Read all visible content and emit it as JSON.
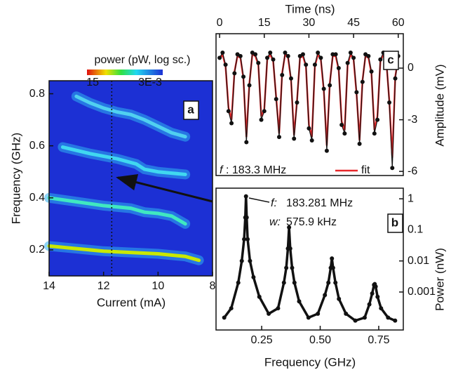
{
  "chart_data": [
    {
      "type": "contour",
      "panel_label": "a",
      "xlabel": "Current (mA)",
      "ylabel": "Frequency (GHz)",
      "xlim": [
        14,
        8
      ],
      "xticks": [
        14,
        12,
        10,
        8
      ],
      "ylim": [
        0.1,
        0.85
      ],
      "yticks": [
        0.2,
        0.4,
        0.6,
        0.8
      ],
      "color": "#1c30d4",
      "marker_x": 11.7,
      "colorbar": {
        "label": "power (pW, log sc.)",
        "clim": [
          30,
          0.003
        ],
        "ticks": [
          15,
          {
            "value": 0.003,
            "label": "3E-3"
          }
        ]
      },
      "series": [
        {
          "color": "#c8e800",
          "x": [
            14,
            13,
            12,
            11,
            10,
            9.5,
            9,
            8.5
          ],
          "values": [
            0.215,
            0.205,
            0.195,
            0.19,
            0.185,
            0.18,
            0.175,
            0.16
          ]
        },
        {
          "color": "#40e8c0",
          "x": [
            14,
            13,
            12,
            11,
            10.5,
            10,
            9.5,
            9
          ],
          "values": [
            0.4,
            0.385,
            0.37,
            0.36,
            0.345,
            0.34,
            0.33,
            0.3
          ]
        },
        {
          "color": "#40d8f0",
          "x": [
            13.5,
            12.5,
            11.5,
            10.8,
            10.5,
            10,
            9.5,
            9
          ],
          "values": [
            0.595,
            0.57,
            0.55,
            0.53,
            0.51,
            0.5,
            0.495,
            0.49
          ]
        },
        {
          "color": "#50d0f0",
          "x": [
            13,
            12.5,
            12,
            11.5,
            11,
            10.5,
            10,
            9.5,
            9
          ],
          "values": [
            0.79,
            0.765,
            0.745,
            0.73,
            0.72,
            0.7,
            0.675,
            0.65,
            0.635
          ]
        }
      ]
    },
    {
      "type": "line",
      "panel_label": "c",
      "xlabel": "Time (ns)",
      "ylabel": "Amplitude (mV)",
      "xlim": [
        -1.2,
        61.7
      ],
      "xticks": [
        0,
        15,
        30,
        45,
        60
      ],
      "ylim": [
        -6.24,
        2
      ],
      "yticks": [
        0,
        -3,
        -6
      ],
      "annotation": [
        "f",
        ": 183.3 MHz"
      ],
      "x": [
        0,
        1,
        2,
        3,
        4,
        5,
        6,
        7,
        8,
        9,
        10,
        11,
        12,
        13,
        14,
        15,
        16,
        17,
        18,
        19,
        20,
        21,
        22,
        23,
        24,
        25,
        26,
        27,
        28,
        29,
        30,
        31,
        32,
        33,
        34,
        35,
        36,
        37,
        38,
        39,
        40,
        41,
        42,
        43,
        44,
        45,
        46,
        47,
        48,
        49,
        50,
        51,
        52,
        53,
        54,
        55,
        56,
        57,
        58,
        59,
        60
      ],
      "series": [
        {
          "name": "fit",
          "color": "#e8282b",
          "values": [
            0.5,
            0.8,
            0.1,
            -2.3,
            -3.0,
            -0.2,
            0.7,
            0.6,
            -0.6,
            -4.0,
            -0.9,
            0.8,
            0.7,
            0.2,
            -2.8,
            -2.4,
            0.5,
            0.8,
            0.4,
            -1.7,
            -3.8,
            -0.3,
            0.8,
            0.6,
            -0.7,
            -3.9,
            -1.9,
            0.6,
            0.7,
            0.1,
            -3.3,
            -4.0,
            0.1,
            0.8,
            0.5,
            -1.3,
            -4.5,
            -0.9,
            0.7,
            0.7,
            -0.1,
            -3.1,
            -3.6,
            0.2,
            0.8,
            0.5,
            -1.5,
            -4.2,
            -0.7,
            0.7,
            0.6,
            -0.3,
            -3.6,
            -2.8,
            0.4,
            0.8,
            0.4,
            -1.9,
            -5.2,
            -0.5,
            0.6
          ]
        },
        {
          "color": "#111111",
          "values": [
            0.6,
            0.9,
            0.2,
            -2.5,
            -3.2,
            -0.3,
            0.8,
            0.7,
            -0.5,
            -4.3,
            -1.0,
            0.9,
            0.8,
            0.3,
            -3.0,
            -2.5,
            0.6,
            0.9,
            0.5,
            -1.8,
            -4.0,
            -0.4,
            0.9,
            0.7,
            -0.6,
            -4.1,
            -2.0,
            0.7,
            0.8,
            0.2,
            -3.5,
            -4.2,
            0.2,
            0.9,
            0.6,
            -1.2,
            -4.8,
            -1.0,
            0.8,
            0.8,
            0.0,
            -3.3,
            -3.8,
            0.3,
            0.9,
            0.6,
            -1.4,
            -4.4,
            -0.8,
            0.8,
            0.7,
            -0.2,
            -3.8,
            -3.0,
            0.5,
            0.9,
            0.5,
            -2.0,
            -5.8,
            -0.6,
            0.7
          ]
        }
      ]
    },
    {
      "type": "line",
      "panel_label": "b",
      "xlabel": "Frequency (GHz)",
      "ylabel": "Power (nW)",
      "log_y": true,
      "xlim": [
        0.055,
        0.855
      ],
      "xticks": [
        0.25,
        {
          "value": 0.5,
          "label": "0.50"
        },
        0.75
      ],
      "ylim": [
        6e-05,
        2.2
      ],
      "yticks": [
        0.001,
        0.01,
        0.1,
        1
      ],
      "annotation": [
        "f:",
        "183.281 MHz",
        "w:",
        "575.9 kHz"
      ],
      "x": [
        0.09,
        0.12,
        0.15,
        0.165,
        0.175,
        0.18,
        0.183,
        0.186,
        0.19,
        0.2,
        0.215,
        0.24,
        0.28,
        0.32,
        0.345,
        0.355,
        0.362,
        0.367,
        0.372,
        0.38,
        0.39,
        0.41,
        0.45,
        0.49,
        0.52,
        0.535,
        0.545,
        0.55,
        0.555,
        0.565,
        0.58,
        0.61,
        0.65,
        0.69,
        0.71,
        0.722,
        0.73,
        0.733,
        0.737,
        0.745,
        0.76,
        0.79,
        0.82
      ],
      "series": [
        {
          "color": "#111111",
          "values": [
            0.00015,
            0.0003,
            0.002,
            0.01,
            0.05,
            0.25,
            1.2,
            0.25,
            0.05,
            0.01,
            0.003,
            0.0007,
            0.0002,
            0.0003,
            0.002,
            0.006,
            0.025,
            0.12,
            0.025,
            0.006,
            0.002,
            0.0005,
            0.00015,
            0.0002,
            0.0008,
            0.002,
            0.006,
            0.012,
            0.006,
            0.002,
            0.0006,
            0.0002,
            0.00012,
            0.00015,
            0.0004,
            0.0009,
            0.0017,
            0.0018,
            0.0015,
            0.0007,
            0.0003,
            0.00015,
            0.00012
          ]
        }
      ]
    }
  ]
}
